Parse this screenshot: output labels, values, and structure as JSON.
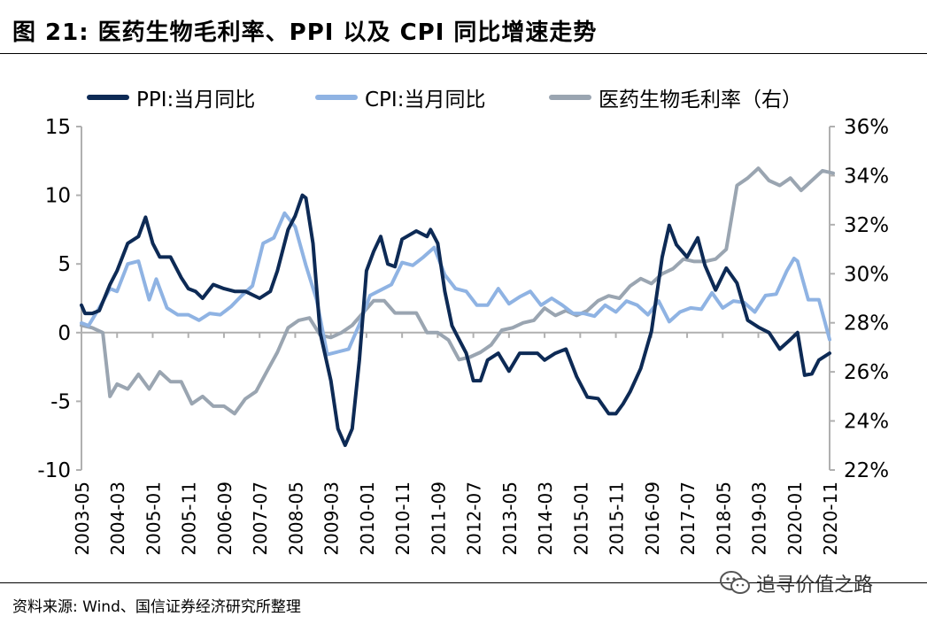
{
  "header": {
    "title": "图 21:  医药生物毛利率、PPI 以及 CPI 同比增速走势"
  },
  "footer": {
    "source": "资料来源: Wind、国信证券经济研究所整理",
    "watermark": "追寻价值之路"
  },
  "colors": {
    "ppi": "#0d2a55",
    "cpi": "#8fb3e3",
    "margin": "#9aa5b1",
    "axis": "#b0b0b0",
    "text": "#000000"
  },
  "icons": {
    "watermark": "wechat-icon"
  },
  "chart_data": {
    "type": "line",
    "grid": false,
    "legend_position": "top",
    "left_axis": {
      "ylim": [
        -10,
        15
      ],
      "ticks": [
        15,
        10,
        5,
        0,
        -5,
        -10
      ],
      "tick_labels": [
        "15",
        "10",
        "5",
        "0",
        "-5",
        "-10"
      ]
    },
    "right_axis": {
      "ylim": [
        22,
        36
      ],
      "ticks": [
        36,
        34,
        32,
        30,
        28,
        26,
        24,
        22
      ],
      "tick_labels": [
        "36%",
        "34%",
        "32%",
        "30%",
        "28%",
        "26%",
        "24%",
        "22%"
      ]
    },
    "x_tick_labels": [
      "2003-05",
      "2004-03",
      "2005-01",
      "2005-11",
      "2006-09",
      "2007-07",
      "2008-05",
      "2009-03",
      "2010-01",
      "2010-11",
      "2011-09",
      "2012-07",
      "2013-05",
      "2014-03",
      "2015-01",
      "2015-11",
      "2016-09",
      "2017-07",
      "2018-05",
      "2019-03",
      "2020-01",
      "2020-11"
    ],
    "series": [
      {
        "name": "PPI:当月同比",
        "axis": "left",
        "x": [
          "2003-05",
          "2003-06",
          "2003-08",
          "2003-10",
          "2004-01",
          "2004-03",
          "2004-06",
          "2004-09",
          "2004-11",
          "2005-01",
          "2005-03",
          "2005-06",
          "2005-09",
          "2005-11",
          "2006-01",
          "2006-03",
          "2006-06",
          "2006-09",
          "2006-12",
          "2007-03",
          "2007-07",
          "2007-10",
          "2007-12",
          "2008-03",
          "2008-05",
          "2008-07",
          "2008-08",
          "2008-10",
          "2008-12",
          "2009-03",
          "2009-05",
          "2009-07",
          "2009-09",
          "2009-11",
          "2010-01",
          "2010-03",
          "2010-05",
          "2010-07",
          "2010-09",
          "2010-11",
          "2011-03",
          "2011-06",
          "2011-07",
          "2011-09",
          "2011-11",
          "2012-01",
          "2012-03",
          "2012-05",
          "2012-07",
          "2012-09",
          "2012-11",
          "2013-02",
          "2013-05",
          "2013-08",
          "2013-10",
          "2014-01",
          "2014-03",
          "2014-06",
          "2014-09",
          "2014-12",
          "2015-03",
          "2015-06",
          "2015-09",
          "2015-11",
          "2016-01",
          "2016-03",
          "2016-06",
          "2016-09",
          "2016-12",
          "2017-02",
          "2017-04",
          "2017-07",
          "2017-10",
          "2017-12",
          "2018-03",
          "2018-06",
          "2018-09",
          "2018-12",
          "2019-03",
          "2019-06",
          "2019-09",
          "2019-12",
          "2020-02",
          "2020-04",
          "2020-06",
          "2020-08",
          "2020-11"
        ],
        "values": [
          2,
          1.4,
          1.4,
          1.6,
          3.5,
          4.5,
          6.5,
          7,
          8.4,
          6.5,
          5.5,
          5.5,
          4,
          3.2,
          3,
          2.5,
          3.5,
          3.2,
          3,
          3,
          2.5,
          3,
          4.5,
          7.5,
          8.5,
          10,
          9.8,
          6.5,
          0,
          -3.5,
          -7,
          -8.2,
          -7,
          -2,
          4.5,
          5.9,
          7,
          5,
          4.8,
          6.8,
          7.4,
          7,
          7.5,
          6.5,
          3,
          0.5,
          -0.5,
          -1.5,
          -3.5,
          -3.5,
          -2,
          -1.5,
          -2.8,
          -1.5,
          -1.5,
          -1.5,
          -2,
          -1.5,
          -1.2,
          -3.2,
          -4.7,
          -4.8,
          -5.9,
          -5.9,
          -5.2,
          -4.3,
          -2.6,
          0.1,
          5.5,
          7.8,
          6.4,
          5.5,
          6.9,
          4.9,
          3.1,
          4.7,
          3.6,
          0.9,
          0.4,
          0,
          -1.2,
          -0.5,
          0,
          -3.1,
          -3,
          -2,
          -1.5
        ]
      },
      {
        "name": "CPI:当月同比",
        "axis": "left",
        "x": [
          "2003-05",
          "2003-07",
          "2003-10",
          "2004-01",
          "2004-03",
          "2004-06",
          "2004-09",
          "2004-12",
          "2005-02",
          "2005-05",
          "2005-08",
          "2005-11",
          "2006-02",
          "2006-05",
          "2006-08",
          "2006-11",
          "2007-02",
          "2007-05",
          "2007-08",
          "2007-11",
          "2008-02",
          "2008-05",
          "2008-08",
          "2008-11",
          "2009-02",
          "2009-05",
          "2009-08",
          "2009-11",
          "2010-02",
          "2010-05",
          "2010-08",
          "2010-11",
          "2011-02",
          "2011-05",
          "2011-08",
          "2011-11",
          "2012-02",
          "2012-05",
          "2012-08",
          "2012-11",
          "2013-02",
          "2013-05",
          "2013-08",
          "2013-11",
          "2014-02",
          "2014-05",
          "2014-08",
          "2014-11",
          "2015-02",
          "2015-05",
          "2015-08",
          "2015-11",
          "2016-02",
          "2016-05",
          "2016-08",
          "2016-11",
          "2017-02",
          "2017-05",
          "2017-08",
          "2017-11",
          "2018-02",
          "2018-05",
          "2018-08",
          "2018-11",
          "2019-02",
          "2019-05",
          "2019-08",
          "2019-11",
          "2020-01",
          "2020-02",
          "2020-05",
          "2020-08",
          "2020-11"
        ],
        "values": [
          0.7,
          0.5,
          1.8,
          3.2,
          3,
          5,
          5.2,
          2.4,
          3.9,
          1.8,
          1.3,
          1.3,
          0.9,
          1.4,
          1.3,
          1.9,
          2.7,
          3.4,
          6.5,
          6.9,
          8.7,
          7.7,
          4.9,
          2.4,
          -1.6,
          -1.4,
          -1.2,
          0.6,
          2.7,
          3.1,
          3.5,
          5.1,
          4.9,
          5.5,
          6.2,
          4.2,
          3.2,
          3,
          2,
          2,
          3.2,
          2.1,
          2.6,
          3,
          2,
          2.5,
          2,
          1.4,
          1.4,
          1.2,
          2,
          1.5,
          2.3,
          2,
          1.3,
          2.3,
          0.8,
          1.5,
          1.8,
          1.7,
          2.9,
          1.8,
          2.3,
          2.2,
          1.5,
          2.7,
          2.8,
          4.5,
          5.4,
          5.2,
          2.4,
          2.4,
          -0.5
        ]
      },
      {
        "name": "医药生物毛利率（右）",
        "axis": "right",
        "x": [
          "2003-05",
          "2003-08",
          "2003-11",
          "2004-01",
          "2004-03",
          "2004-06",
          "2004-09",
          "2004-12",
          "2005-03",
          "2005-06",
          "2005-09",
          "2005-12",
          "2006-03",
          "2006-06",
          "2006-09",
          "2006-12",
          "2007-03",
          "2007-06",
          "2007-09",
          "2007-12",
          "2008-03",
          "2008-06",
          "2008-09",
          "2008-12",
          "2009-03",
          "2009-06",
          "2009-09",
          "2009-12",
          "2010-03",
          "2010-06",
          "2010-09",
          "2010-12",
          "2011-03",
          "2011-06",
          "2011-09",
          "2011-12",
          "2012-03",
          "2012-06",
          "2012-09",
          "2012-12",
          "2013-03",
          "2013-06",
          "2013-09",
          "2013-12",
          "2014-03",
          "2014-06",
          "2014-09",
          "2014-12",
          "2015-03",
          "2015-06",
          "2015-09",
          "2015-12",
          "2016-03",
          "2016-06",
          "2016-09",
          "2016-12",
          "2017-03",
          "2017-06",
          "2017-09",
          "2017-12",
          "2018-03",
          "2018-06",
          "2018-09",
          "2018-12",
          "2019-03",
          "2019-06",
          "2019-09",
          "2019-12",
          "2020-03",
          "2020-06",
          "2020-09",
          "2020-12"
        ],
        "values": [
          27.9,
          27.8,
          27.6,
          25,
          25.5,
          25.3,
          25.9,
          25.3,
          26,
          25.6,
          25.6,
          24.7,
          25,
          24.6,
          24.6,
          24.3,
          24.9,
          25.2,
          26,
          26.8,
          27.8,
          28.1,
          28.2,
          27.5,
          27.4,
          27.6,
          27.9,
          28.4,
          28.9,
          28.9,
          28.4,
          28.4,
          28.4,
          27.6,
          27.6,
          27.3,
          26.5,
          26.6,
          26.8,
          27.1,
          27.7,
          27.8,
          28,
          28.1,
          28.6,
          28.3,
          28.5,
          28.3,
          28.5,
          28.9,
          29.1,
          29,
          29.5,
          29.8,
          29.6,
          30,
          30.2,
          30.6,
          30.5,
          30.5,
          30.6,
          31,
          33.6,
          33.9,
          34.3,
          33.8,
          33.6,
          33.9,
          33.4,
          33.8,
          34.2,
          34.1
        ]
      }
    ]
  }
}
